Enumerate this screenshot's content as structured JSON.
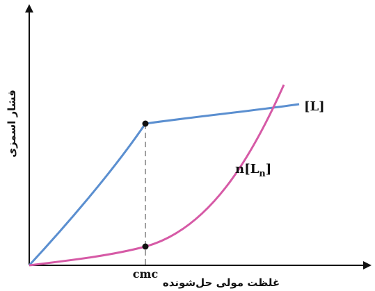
{
  "diagram": {
    "x_axis_label": "غلظت مولی حل‌شونده",
    "y_axis_label": "فشار اسمزی",
    "x_marker_label": "cmc",
    "curves": [
      {
        "label": "[L]",
        "color": "#5b8fd0"
      },
      {
        "label_main": "n[L",
        "label_sub": "n",
        "label_end": "]",
        "color": "#d65aa6"
      }
    ],
    "guide_line_color": "#888888"
  }
}
